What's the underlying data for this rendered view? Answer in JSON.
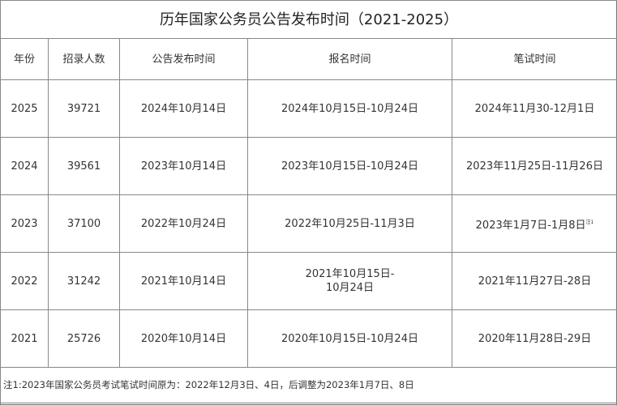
{
  "title": "历年国家公务员公告发布时间（2021-2025）",
  "headers": [
    "年份",
    "招录人数",
    "公告发布时间",
    "报名时间",
    "笔试时间"
  ],
  "rows": [
    {
      "year": "2025",
      "count": "39721",
      "announce": "2024年10月14日",
      "register": "2024年10月15日-10月24日",
      "exam": "2024年11月30-12月1日",
      "mark": ""
    },
    {
      "year": "2024",
      "count": "39561",
      "announce": "2023年10月14日",
      "register": "2023年10月15日-10月24日",
      "exam": "2023年11月25日-11月26日",
      "mark": ""
    },
    {
      "year": "2023",
      "count": "37100",
      "announce": "2022年10月24日",
      "register": "2022年10月25日-11月3日",
      "exam": "2023年1月7日-1月8日",
      "mark": "注1"
    },
    {
      "year": "2022",
      "count": "31242",
      "announce": "2021年10月14日",
      "register": "2021年10月15日-\n10月24日",
      "exam": "2021年11月27日-28日",
      "mark": ""
    },
    {
      "year": "2021",
      "count": "25726",
      "announce": "2020年10月14日",
      "register": "2020年10月15日-10月24日",
      "exam": "2020年11月28日-29日",
      "mark": ""
    }
  ],
  "note": "注1:2023年国家公务员考试笔试时间原为：2022年12月3日、4日，后调整为2023年1月7日、8日"
}
